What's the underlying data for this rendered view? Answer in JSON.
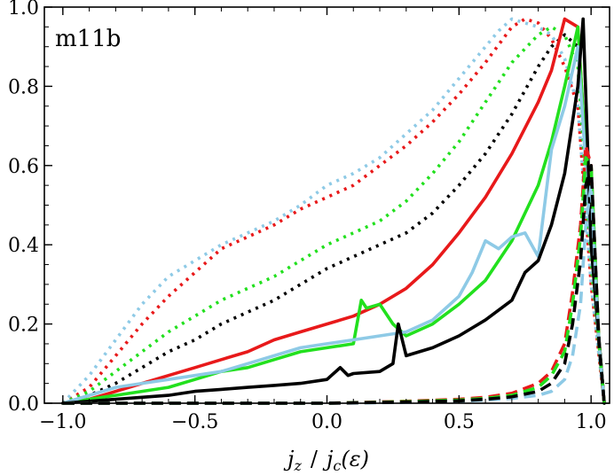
{
  "chart_data": {
    "type": "line",
    "title": "m11b",
    "xlabel": "j_z / j_c(ε)",
    "xlabel_parts": {
      "a": "j",
      "a_sub": "z",
      "sep": "/",
      "b": "j",
      "b_sub": "c",
      "b_arg": "(ε)"
    },
    "ylabel": "",
    "xlim": [
      -1.07,
      1.07
    ],
    "ylim": [
      0,
      1.0
    ],
    "xticks": [
      -1.0,
      -0.5,
      0.0,
      0.5,
      1.0
    ],
    "xtick_labels": [
      "−1.0",
      "−0.5",
      "0.0",
      "0.5",
      "1.0"
    ],
    "yticks": [
      0.0,
      0.2,
      0.4,
      0.6,
      0.8,
      1.0
    ],
    "ytick_labels": [
      "0.0",
      "0.2",
      "0.4",
      "0.6",
      "0.8",
      "1.0"
    ],
    "grid": false,
    "legend": "none",
    "colors": {
      "red": "#e8191a",
      "green": "#22e01e",
      "skyblue": "#8ecae6",
      "black": "#000000"
    },
    "series": [
      {
        "name": "red dotted",
        "color": "#e8191a",
        "style": "dotted",
        "x": [
          -1.0,
          -0.9,
          -0.8,
          -0.7,
          -0.6,
          -0.5,
          -0.4,
          -0.3,
          -0.2,
          -0.1,
          0.0,
          0.1,
          0.2,
          0.3,
          0.4,
          0.5,
          0.6,
          0.7,
          0.75,
          0.8,
          0.85,
          0.9,
          0.95,
          1.0,
          1.05
        ],
        "y": [
          0.0,
          0.04,
          0.12,
          0.2,
          0.27,
          0.33,
          0.39,
          0.42,
          0.45,
          0.49,
          0.52,
          0.55,
          0.6,
          0.65,
          0.71,
          0.78,
          0.86,
          0.95,
          0.97,
          0.96,
          0.92,
          0.85,
          0.75,
          0.3,
          0.0
        ]
      },
      {
        "name": "green dotted",
        "color": "#22e01e",
        "style": "dotted",
        "x": [
          -1.0,
          -0.9,
          -0.8,
          -0.7,
          -0.6,
          -0.5,
          -0.4,
          -0.3,
          -0.2,
          -0.1,
          0.0,
          0.1,
          0.2,
          0.3,
          0.4,
          0.5,
          0.6,
          0.7,
          0.8,
          0.85,
          0.9,
          0.95,
          1.0,
          1.05
        ],
        "y": [
          0.0,
          0.03,
          0.08,
          0.13,
          0.18,
          0.22,
          0.26,
          0.29,
          0.32,
          0.36,
          0.4,
          0.43,
          0.46,
          0.51,
          0.58,
          0.66,
          0.76,
          0.86,
          0.93,
          0.95,
          0.93,
          0.85,
          0.35,
          0.0
        ]
      },
      {
        "name": "skyblue dotted",
        "color": "#8ecae6",
        "style": "dotted",
        "x": [
          -1.0,
          -0.9,
          -0.8,
          -0.7,
          -0.6,
          -0.5,
          -0.4,
          -0.3,
          -0.2,
          -0.1,
          0.0,
          0.1,
          0.2,
          0.3,
          0.4,
          0.5,
          0.6,
          0.65,
          0.7,
          0.75,
          0.8,
          0.85,
          0.9,
          0.95,
          1.0,
          1.05
        ],
        "y": [
          0.0,
          0.07,
          0.16,
          0.25,
          0.32,
          0.36,
          0.4,
          0.43,
          0.46,
          0.5,
          0.55,
          0.58,
          0.62,
          0.68,
          0.74,
          0.82,
          0.9,
          0.94,
          0.97,
          0.96,
          0.95,
          0.93,
          0.87,
          0.75,
          0.3,
          0.0
        ]
      },
      {
        "name": "black dotted",
        "color": "#000000",
        "style": "dotted",
        "x": [
          -1.0,
          -0.9,
          -0.8,
          -0.7,
          -0.6,
          -0.5,
          -0.4,
          -0.3,
          -0.2,
          -0.1,
          0.0,
          0.1,
          0.2,
          0.3,
          0.4,
          0.5,
          0.6,
          0.7,
          0.8,
          0.85,
          0.9,
          0.95,
          1.0,
          1.05
        ],
        "y": [
          0.0,
          0.02,
          0.05,
          0.09,
          0.13,
          0.16,
          0.2,
          0.23,
          0.26,
          0.3,
          0.34,
          0.37,
          0.4,
          0.43,
          0.48,
          0.55,
          0.63,
          0.73,
          0.85,
          0.9,
          0.93,
          0.9,
          0.4,
          0.0
        ]
      },
      {
        "name": "red solid",
        "color": "#e8191a",
        "style": "solid",
        "x": [
          -1.0,
          -0.9,
          -0.8,
          -0.7,
          -0.6,
          -0.5,
          -0.4,
          -0.3,
          -0.2,
          -0.1,
          0.0,
          0.1,
          0.2,
          0.3,
          0.4,
          0.5,
          0.6,
          0.7,
          0.8,
          0.85,
          0.9,
          0.95,
          1.0,
          1.05
        ],
        "y": [
          0.0,
          0.01,
          0.03,
          0.05,
          0.07,
          0.09,
          0.11,
          0.13,
          0.16,
          0.18,
          0.2,
          0.22,
          0.25,
          0.29,
          0.35,
          0.43,
          0.52,
          0.63,
          0.76,
          0.84,
          0.97,
          0.95,
          0.4,
          0.0
        ]
      },
      {
        "name": "green solid",
        "color": "#22e01e",
        "style": "solid",
        "x": [
          -1.0,
          -0.9,
          -0.8,
          -0.7,
          -0.6,
          -0.5,
          -0.4,
          -0.3,
          -0.2,
          -0.1,
          0.0,
          0.1,
          0.13,
          0.15,
          0.2,
          0.25,
          0.3,
          0.4,
          0.5,
          0.6,
          0.7,
          0.8,
          0.85,
          0.9,
          0.95,
          1.0,
          1.05
        ],
        "y": [
          0.0,
          0.01,
          0.02,
          0.03,
          0.04,
          0.06,
          0.08,
          0.09,
          0.11,
          0.13,
          0.14,
          0.15,
          0.26,
          0.24,
          0.25,
          0.2,
          0.17,
          0.2,
          0.25,
          0.31,
          0.41,
          0.55,
          0.66,
          0.8,
          0.95,
          0.4,
          0.0
        ]
      },
      {
        "name": "skyblue solid",
        "color": "#8ecae6",
        "style": "solid",
        "x": [
          -1.0,
          -0.9,
          -0.8,
          -0.7,
          -0.6,
          -0.5,
          -0.4,
          -0.3,
          -0.2,
          -0.1,
          0.0,
          0.1,
          0.2,
          0.3,
          0.4,
          0.5,
          0.55,
          0.6,
          0.65,
          0.7,
          0.75,
          0.8,
          0.85,
          0.9,
          0.95,
          1.0,
          1.05
        ],
        "y": [
          0.0,
          0.02,
          0.04,
          0.05,
          0.06,
          0.07,
          0.08,
          0.1,
          0.12,
          0.14,
          0.15,
          0.16,
          0.17,
          0.18,
          0.21,
          0.27,
          0.33,
          0.41,
          0.39,
          0.42,
          0.43,
          0.37,
          0.64,
          0.75,
          0.9,
          0.4,
          0.0
        ]
      },
      {
        "name": "black solid",
        "color": "#000000",
        "style": "solid",
        "x": [
          -1.0,
          -0.9,
          -0.8,
          -0.7,
          -0.6,
          -0.5,
          -0.4,
          -0.3,
          -0.2,
          -0.1,
          0.0,
          0.05,
          0.08,
          0.1,
          0.2,
          0.25,
          0.27,
          0.3,
          0.4,
          0.5,
          0.6,
          0.7,
          0.75,
          0.8,
          0.85,
          0.9,
          0.95,
          0.97,
          1.0,
          1.05
        ],
        "y": [
          0.0,
          0.005,
          0.01,
          0.015,
          0.02,
          0.03,
          0.035,
          0.04,
          0.045,
          0.05,
          0.06,
          0.09,
          0.07,
          0.075,
          0.08,
          0.1,
          0.2,
          0.12,
          0.14,
          0.17,
          0.21,
          0.26,
          0.33,
          0.36,
          0.45,
          0.58,
          0.8,
          0.97,
          0.4,
          0.0
        ]
      },
      {
        "name": "red dashed",
        "color": "#e8191a",
        "style": "dashed",
        "x": [
          -1.0,
          -0.5,
          0.0,
          0.3,
          0.5,
          0.6,
          0.7,
          0.8,
          0.85,
          0.9,
          0.93,
          0.96,
          0.98,
          1.0,
          1.03,
          1.05
        ],
        "y": [
          0.0,
          0.0,
          0.0,
          0.005,
          0.01,
          0.015,
          0.025,
          0.05,
          0.08,
          0.15,
          0.28,
          0.45,
          0.65,
          0.6,
          0.15,
          0.0
        ]
      },
      {
        "name": "green dashed",
        "color": "#22e01e",
        "style": "dashed",
        "x": [
          -1.0,
          -0.5,
          0.0,
          0.3,
          0.5,
          0.6,
          0.7,
          0.8,
          0.85,
          0.9,
          0.93,
          0.96,
          0.98,
          1.0,
          1.03,
          1.05
        ],
        "y": [
          0.0,
          0.0,
          0.0,
          0.004,
          0.008,
          0.012,
          0.02,
          0.04,
          0.07,
          0.13,
          0.25,
          0.42,
          0.62,
          0.6,
          0.15,
          0.0
        ]
      },
      {
        "name": "skyblue dashed",
        "color": "#8ecae6",
        "style": "dashed",
        "x": [
          -1.0,
          -0.5,
          0.0,
          0.3,
          0.5,
          0.6,
          0.7,
          0.8,
          0.85,
          0.9,
          0.93,
          0.96,
          0.98,
          1.0,
          1.03,
          1.05
        ],
        "y": [
          0.0,
          0.0,
          0.0,
          0.002,
          0.005,
          0.008,
          0.012,
          0.02,
          0.03,
          0.06,
          0.12,
          0.25,
          0.45,
          0.55,
          0.15,
          0.0
        ]
      },
      {
        "name": "black dashed",
        "color": "#000000",
        "style": "dashed",
        "x": [
          -1.0,
          -0.5,
          0.0,
          0.3,
          0.5,
          0.6,
          0.7,
          0.8,
          0.85,
          0.9,
          0.93,
          0.96,
          0.98,
          1.0,
          1.03,
          1.05
        ],
        "y": [
          0.0,
          0.0,
          0.0,
          0.003,
          0.006,
          0.01,
          0.016,
          0.03,
          0.05,
          0.1,
          0.2,
          0.36,
          0.55,
          0.6,
          0.15,
          0.0
        ]
      }
    ]
  }
}
